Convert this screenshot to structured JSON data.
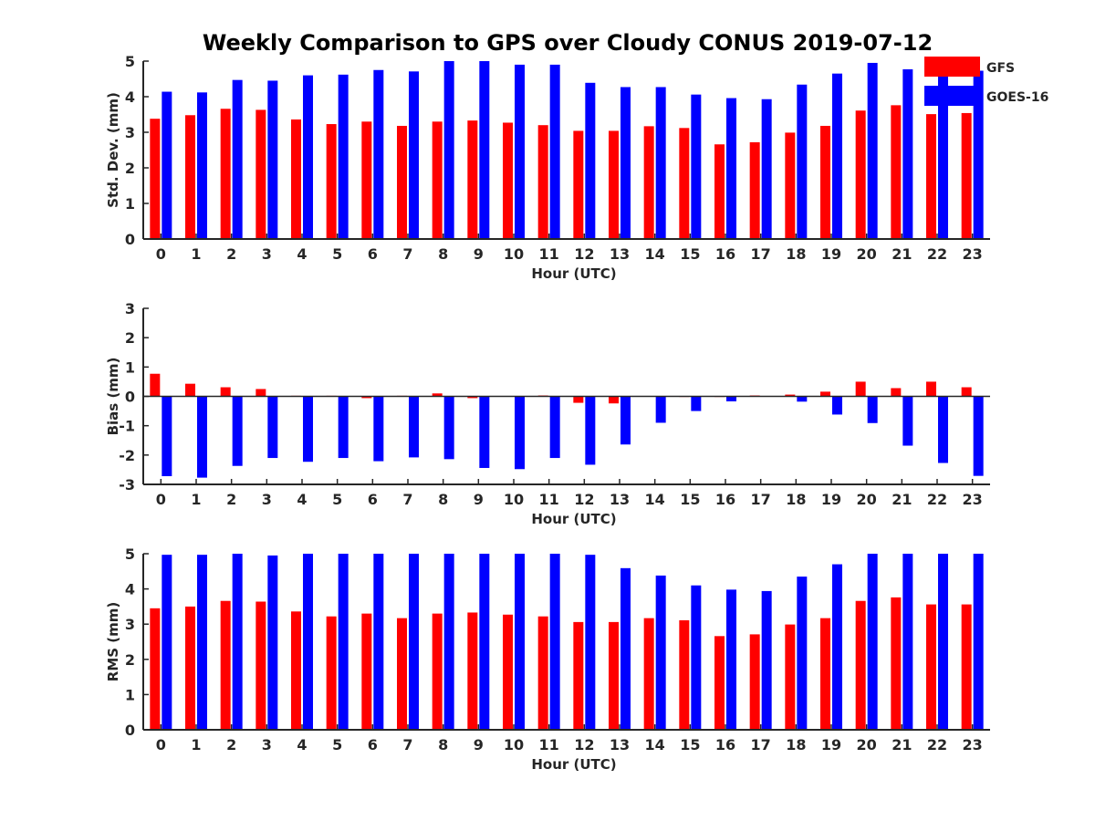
{
  "figure_title": "Weekly Comparison to GPS over Cloudy CONUS 2019-07-12",
  "colors": {
    "GFS": "#ff0000",
    "GOES-16": "#0000ff",
    "axis": "#262626"
  },
  "legend": {
    "placement": "top-right",
    "entries": [
      "GFS",
      "GOES-16"
    ]
  },
  "chart_data": [
    {
      "type": "bar",
      "xlabel": "Hour (UTC)",
      "ylabel": "Std. Dev. (mm)",
      "ylim": [
        0,
        5
      ],
      "yticks": [
        0,
        1,
        2,
        3,
        4,
        5
      ],
      "grid": false,
      "categories": [
        "0",
        "1",
        "2",
        "3",
        "4",
        "5",
        "6",
        "7",
        "8",
        "9",
        "10",
        "11",
        "12",
        "13",
        "14",
        "15",
        "16",
        "17",
        "18",
        "19",
        "20",
        "21",
        "22",
        "23"
      ],
      "series": [
        {
          "name": "GFS",
          "values": [
            3.38,
            3.48,
            3.66,
            3.63,
            3.36,
            3.23,
            3.3,
            3.18,
            3.3,
            3.33,
            3.27,
            3.2,
            3.04,
            3.04,
            3.17,
            3.12,
            2.66,
            2.72,
            2.99,
            3.18,
            3.61,
            3.76,
            3.51,
            3.54
          ]
        },
        {
          "name": "GOES-16",
          "values": [
            4.14,
            4.12,
            4.47,
            4.45,
            4.6,
            4.62,
            4.75,
            4.71,
            5.0,
            5.0,
            4.9,
            4.9,
            4.39,
            4.27,
            4.27,
            4.06,
            3.96,
            3.93,
            4.34,
            4.65,
            4.95,
            4.77,
            4.73,
            4.73
          ]
        }
      ]
    },
    {
      "type": "bar",
      "xlabel": "Hour (UTC)",
      "ylabel": "Bias (mm)",
      "ylim": [
        -3,
        3
      ],
      "yticks": [
        -3,
        -2,
        -1,
        0,
        1,
        2,
        3
      ],
      "grid": false,
      "categories": [
        "0",
        "1",
        "2",
        "3",
        "4",
        "5",
        "6",
        "7",
        "8",
        "9",
        "10",
        "11",
        "12",
        "13",
        "14",
        "15",
        "16",
        "17",
        "18",
        "19",
        "20",
        "21",
        "22",
        "23"
      ],
      "series": [
        {
          "name": "GFS",
          "values": [
            0.77,
            0.43,
            0.31,
            0.25,
            0.02,
            0.02,
            -0.06,
            0.02,
            0.1,
            -0.06,
            0.0,
            0.03,
            -0.22,
            -0.24,
            0.0,
            -0.02,
            -0.02,
            0.03,
            0.06,
            0.16,
            0.5,
            0.28,
            0.5,
            0.31
          ]
        },
        {
          "name": "GOES-16",
          "values": [
            -2.72,
            -2.77,
            -2.37,
            -2.1,
            -2.23,
            -2.1,
            -2.21,
            -2.08,
            -2.14,
            -2.44,
            -2.48,
            -2.1,
            -2.33,
            -1.64,
            -0.9,
            -0.5,
            -0.17,
            0.0,
            -0.18,
            -0.62,
            -0.91,
            -1.68,
            -2.27,
            -2.71
          ]
        }
      ]
    },
    {
      "type": "bar",
      "xlabel": "Hour (UTC)",
      "ylabel": "RMS (mm)",
      "ylim": [
        0,
        5
      ],
      "yticks": [
        0,
        1,
        2,
        3,
        4,
        5
      ],
      "grid": false,
      "categories": [
        "0",
        "1",
        "2",
        "3",
        "4",
        "5",
        "6",
        "7",
        "8",
        "9",
        "10",
        "11",
        "12",
        "13",
        "14",
        "15",
        "16",
        "17",
        "18",
        "19",
        "20",
        "21",
        "22",
        "23"
      ],
      "series": [
        {
          "name": "GFS",
          "values": [
            3.45,
            3.5,
            3.66,
            3.64,
            3.36,
            3.22,
            3.3,
            3.17,
            3.3,
            3.33,
            3.27,
            3.22,
            3.06,
            3.06,
            3.17,
            3.11,
            2.66,
            2.71,
            2.99,
            3.17,
            3.66,
            3.76,
            3.56,
            3.56
          ]
        },
        {
          "name": "GOES-16",
          "values": [
            4.97,
            4.97,
            5.0,
            4.95,
            5.0,
            5.0,
            5.0,
            5.0,
            5.0,
            5.0,
            5.0,
            5.0,
            4.97,
            4.59,
            4.38,
            4.1,
            3.98,
            3.94,
            4.35,
            4.7,
            5.0,
            5.0,
            5.0,
            5.0
          ]
        }
      ]
    }
  ]
}
